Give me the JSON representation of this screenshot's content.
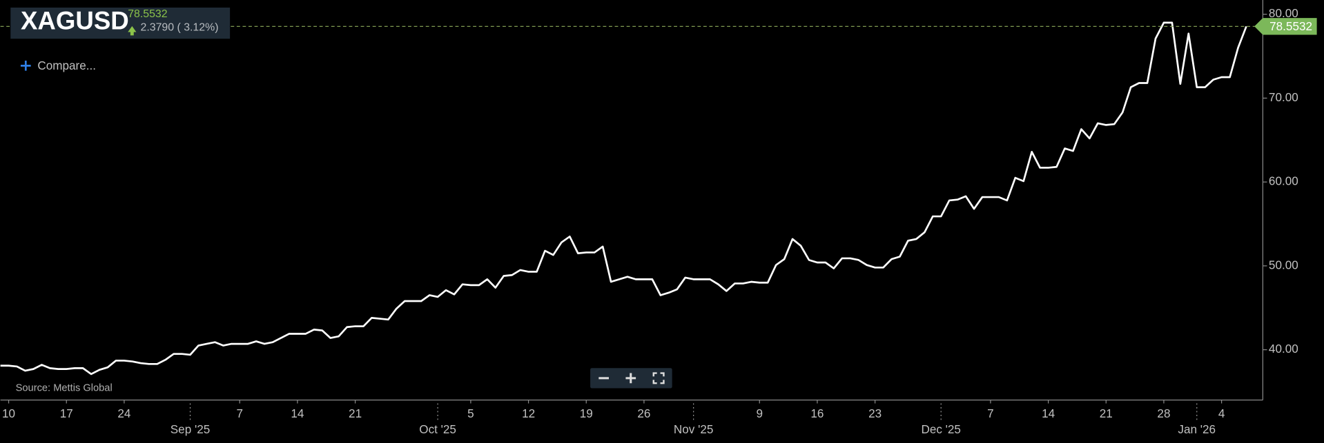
{
  "chart_data": {
    "type": "line",
    "header": {
      "symbol": "XAGUSD",
      "change": "2.3790 ( 3.12%)",
      "compare": "Compare...",
      "source": "Source: Mettis Global"
    },
    "x": [
      "2025-08-09",
      "2025-08-10",
      "2025-08-11",
      "2025-08-12",
      "2025-08-13",
      "2025-08-14",
      "2025-08-15",
      "2025-08-16",
      "2025-08-17",
      "2025-08-18",
      "2025-08-19",
      "2025-08-20",
      "2025-08-21",
      "2025-08-22",
      "2025-08-23",
      "2025-08-24",
      "2025-08-25",
      "2025-08-26",
      "2025-08-27",
      "2025-08-28",
      "2025-08-29",
      "2025-08-30",
      "2025-08-31",
      "2025-09-01",
      "2025-09-02",
      "2025-09-03",
      "2025-09-04",
      "2025-09-05",
      "2025-09-06",
      "2025-09-07",
      "2025-09-08",
      "2025-09-09",
      "2025-09-10",
      "2025-09-11",
      "2025-09-12",
      "2025-09-13",
      "2025-09-14",
      "2025-09-15",
      "2025-09-16",
      "2025-09-17",
      "2025-09-18",
      "2025-09-19",
      "2025-09-20",
      "2025-09-21",
      "2025-09-22",
      "2025-09-23",
      "2025-09-24",
      "2025-09-25",
      "2025-09-26",
      "2025-09-27",
      "2025-09-28",
      "2025-09-29",
      "2025-09-30",
      "2025-10-01",
      "2025-10-02",
      "2025-10-03",
      "2025-10-04",
      "2025-10-05",
      "2025-10-06",
      "2025-10-07",
      "2025-10-08",
      "2025-10-09",
      "2025-10-10",
      "2025-10-11",
      "2025-10-12",
      "2025-10-13",
      "2025-10-14",
      "2025-10-15",
      "2025-10-16",
      "2025-10-17",
      "2025-10-18",
      "2025-10-19",
      "2025-10-20",
      "2025-10-21",
      "2025-10-22",
      "2025-10-23",
      "2025-10-24",
      "2025-10-25",
      "2025-10-26",
      "2025-10-27",
      "2025-10-28",
      "2025-10-29",
      "2025-10-30",
      "2025-10-31",
      "2025-11-01",
      "2025-11-02",
      "2025-11-03",
      "2025-11-04",
      "2025-11-05",
      "2025-11-06",
      "2025-11-07",
      "2025-11-08",
      "2025-11-09",
      "2025-11-10",
      "2025-11-11",
      "2025-11-12",
      "2025-11-13",
      "2025-11-14",
      "2025-11-15",
      "2025-11-16",
      "2025-11-17",
      "2025-11-18",
      "2025-11-19",
      "2025-11-20",
      "2025-11-21",
      "2025-11-22",
      "2025-11-23",
      "2025-11-24",
      "2025-11-25",
      "2025-11-26",
      "2025-11-27",
      "2025-11-28",
      "2025-11-29",
      "2025-11-30",
      "2025-12-01",
      "2025-12-02",
      "2025-12-03",
      "2025-12-04",
      "2025-12-05",
      "2025-12-06",
      "2025-12-07",
      "2025-12-08",
      "2025-12-09",
      "2025-12-10",
      "2025-12-11",
      "2025-12-12",
      "2025-12-13",
      "2025-12-14",
      "2025-12-15",
      "2025-12-16",
      "2025-12-17",
      "2025-12-18",
      "2025-12-19",
      "2025-12-20",
      "2025-12-21",
      "2025-12-22",
      "2025-12-23",
      "2025-12-24",
      "2025-12-25",
      "2025-12-26",
      "2025-12-27",
      "2025-12-28",
      "2025-12-29",
      "2025-12-30",
      "2025-12-31",
      "2026-01-01",
      "2026-01-02",
      "2026-01-03",
      "2026-01-04",
      "2026-01-05",
      "2026-01-06",
      "2026-01-07"
    ],
    "series": [
      {
        "name": "XAGUSD",
        "color": "#ffffff",
        "values": [
          38.1,
          38.1,
          38.0,
          37.5,
          37.7,
          38.2,
          37.8,
          37.7,
          37.7,
          37.8,
          37.8,
          37.1,
          37.6,
          37.9,
          38.7,
          38.7,
          38.6,
          38.4,
          38.3,
          38.3,
          38.8,
          39.5,
          39.5,
          39.4,
          40.5,
          40.7,
          40.9,
          40.5,
          40.7,
          40.7,
          40.7,
          41.0,
          40.7,
          40.9,
          41.4,
          41.9,
          41.9,
          41.9,
          42.4,
          42.3,
          41.4,
          41.6,
          42.7,
          42.8,
          42.8,
          43.8,
          43.7,
          43.6,
          44.9,
          45.8,
          45.8,
          45.8,
          46.5,
          46.3,
          47.1,
          46.6,
          47.8,
          47.7,
          47.7,
          48.4,
          47.4,
          48.8,
          48.9,
          49.5,
          49.3,
          49.3,
          51.8,
          51.3,
          52.8,
          53.5,
          51.5,
          51.6,
          51.6,
          52.3,
          48.1,
          48.4,
          48.7,
          48.4,
          48.4,
          48.4,
          46.5,
          46.8,
          47.2,
          48.6,
          48.4,
          48.4,
          48.4,
          47.8,
          47.0,
          47.9,
          47.9,
          48.1,
          48.0,
          48.0,
          50.1,
          50.8,
          53.2,
          52.4,
          50.7,
          50.4,
          50.4,
          49.7,
          50.9,
          50.9,
          50.7,
          50.1,
          49.8,
          49.8,
          50.8,
          51.1,
          53.0,
          53.2,
          54.0,
          55.9,
          55.9,
          57.8,
          57.9,
          58.3,
          56.8,
          58.2,
          58.2,
          58.2,
          57.8,
          60.5,
          60.1,
          63.6,
          61.7,
          61.7,
          61.8,
          64.0,
          63.7,
          66.3,
          65.2,
          67.0,
          66.8,
          66.9,
          68.3,
          71.3,
          71.8,
          71.8,
          77.1,
          79.0,
          79.0,
          71.7,
          77.7,
          71.3,
          71.3,
          72.2,
          72.5,
          72.5,
          76.0,
          78.5532
        ]
      }
    ],
    "xlim": [
      "2025-08-09",
      "2026-01-09"
    ],
    "xticks": [
      {
        "value": "2025-08-10",
        "label": "10"
      },
      {
        "value": "2025-08-17",
        "label": "17"
      },
      {
        "value": "2025-08-24",
        "label": "24"
      },
      {
        "value": "2025-09-07",
        "label": "7"
      },
      {
        "value": "2025-09-14",
        "label": "14"
      },
      {
        "value": "2025-09-21",
        "label": "21"
      },
      {
        "value": "2025-10-05",
        "label": "5"
      },
      {
        "value": "2025-10-12",
        "label": "12"
      },
      {
        "value": "2025-10-19",
        "label": "19"
      },
      {
        "value": "2025-10-26",
        "label": "26"
      },
      {
        "value": "2025-11-09",
        "label": "9"
      },
      {
        "value": "2025-11-16",
        "label": "16"
      },
      {
        "value": "2025-11-23",
        "label": "23"
      },
      {
        "value": "2025-12-07",
        "label": "7"
      },
      {
        "value": "2025-12-14",
        "label": "14"
      },
      {
        "value": "2025-12-21",
        "label": "21"
      },
      {
        "value": "2025-12-28",
        "label": "28"
      },
      {
        "value": "2026-01-04",
        "label": "4"
      }
    ],
    "xticks_month": [
      {
        "value": "2025-09-01",
        "label": "Sep '25"
      },
      {
        "value": "2025-10-01",
        "label": "Oct '25"
      },
      {
        "value": "2025-11-01",
        "label": "Nov '25"
      },
      {
        "value": "2025-12-01",
        "label": "Dec '25"
      },
      {
        "value": "2026-01-01",
        "label": "Jan '26"
      }
    ],
    "ylim": [
      34,
      81.7
    ],
    "yticks": [
      {
        "value": 40,
        "label": "40.00"
      },
      {
        "value": 50,
        "label": "50.00"
      },
      {
        "value": 60,
        "label": "60.00"
      },
      {
        "value": 70,
        "label": "70.00"
      },
      {
        "value": 80,
        "label": "80.00"
      }
    ],
    "grid": false
  }
}
